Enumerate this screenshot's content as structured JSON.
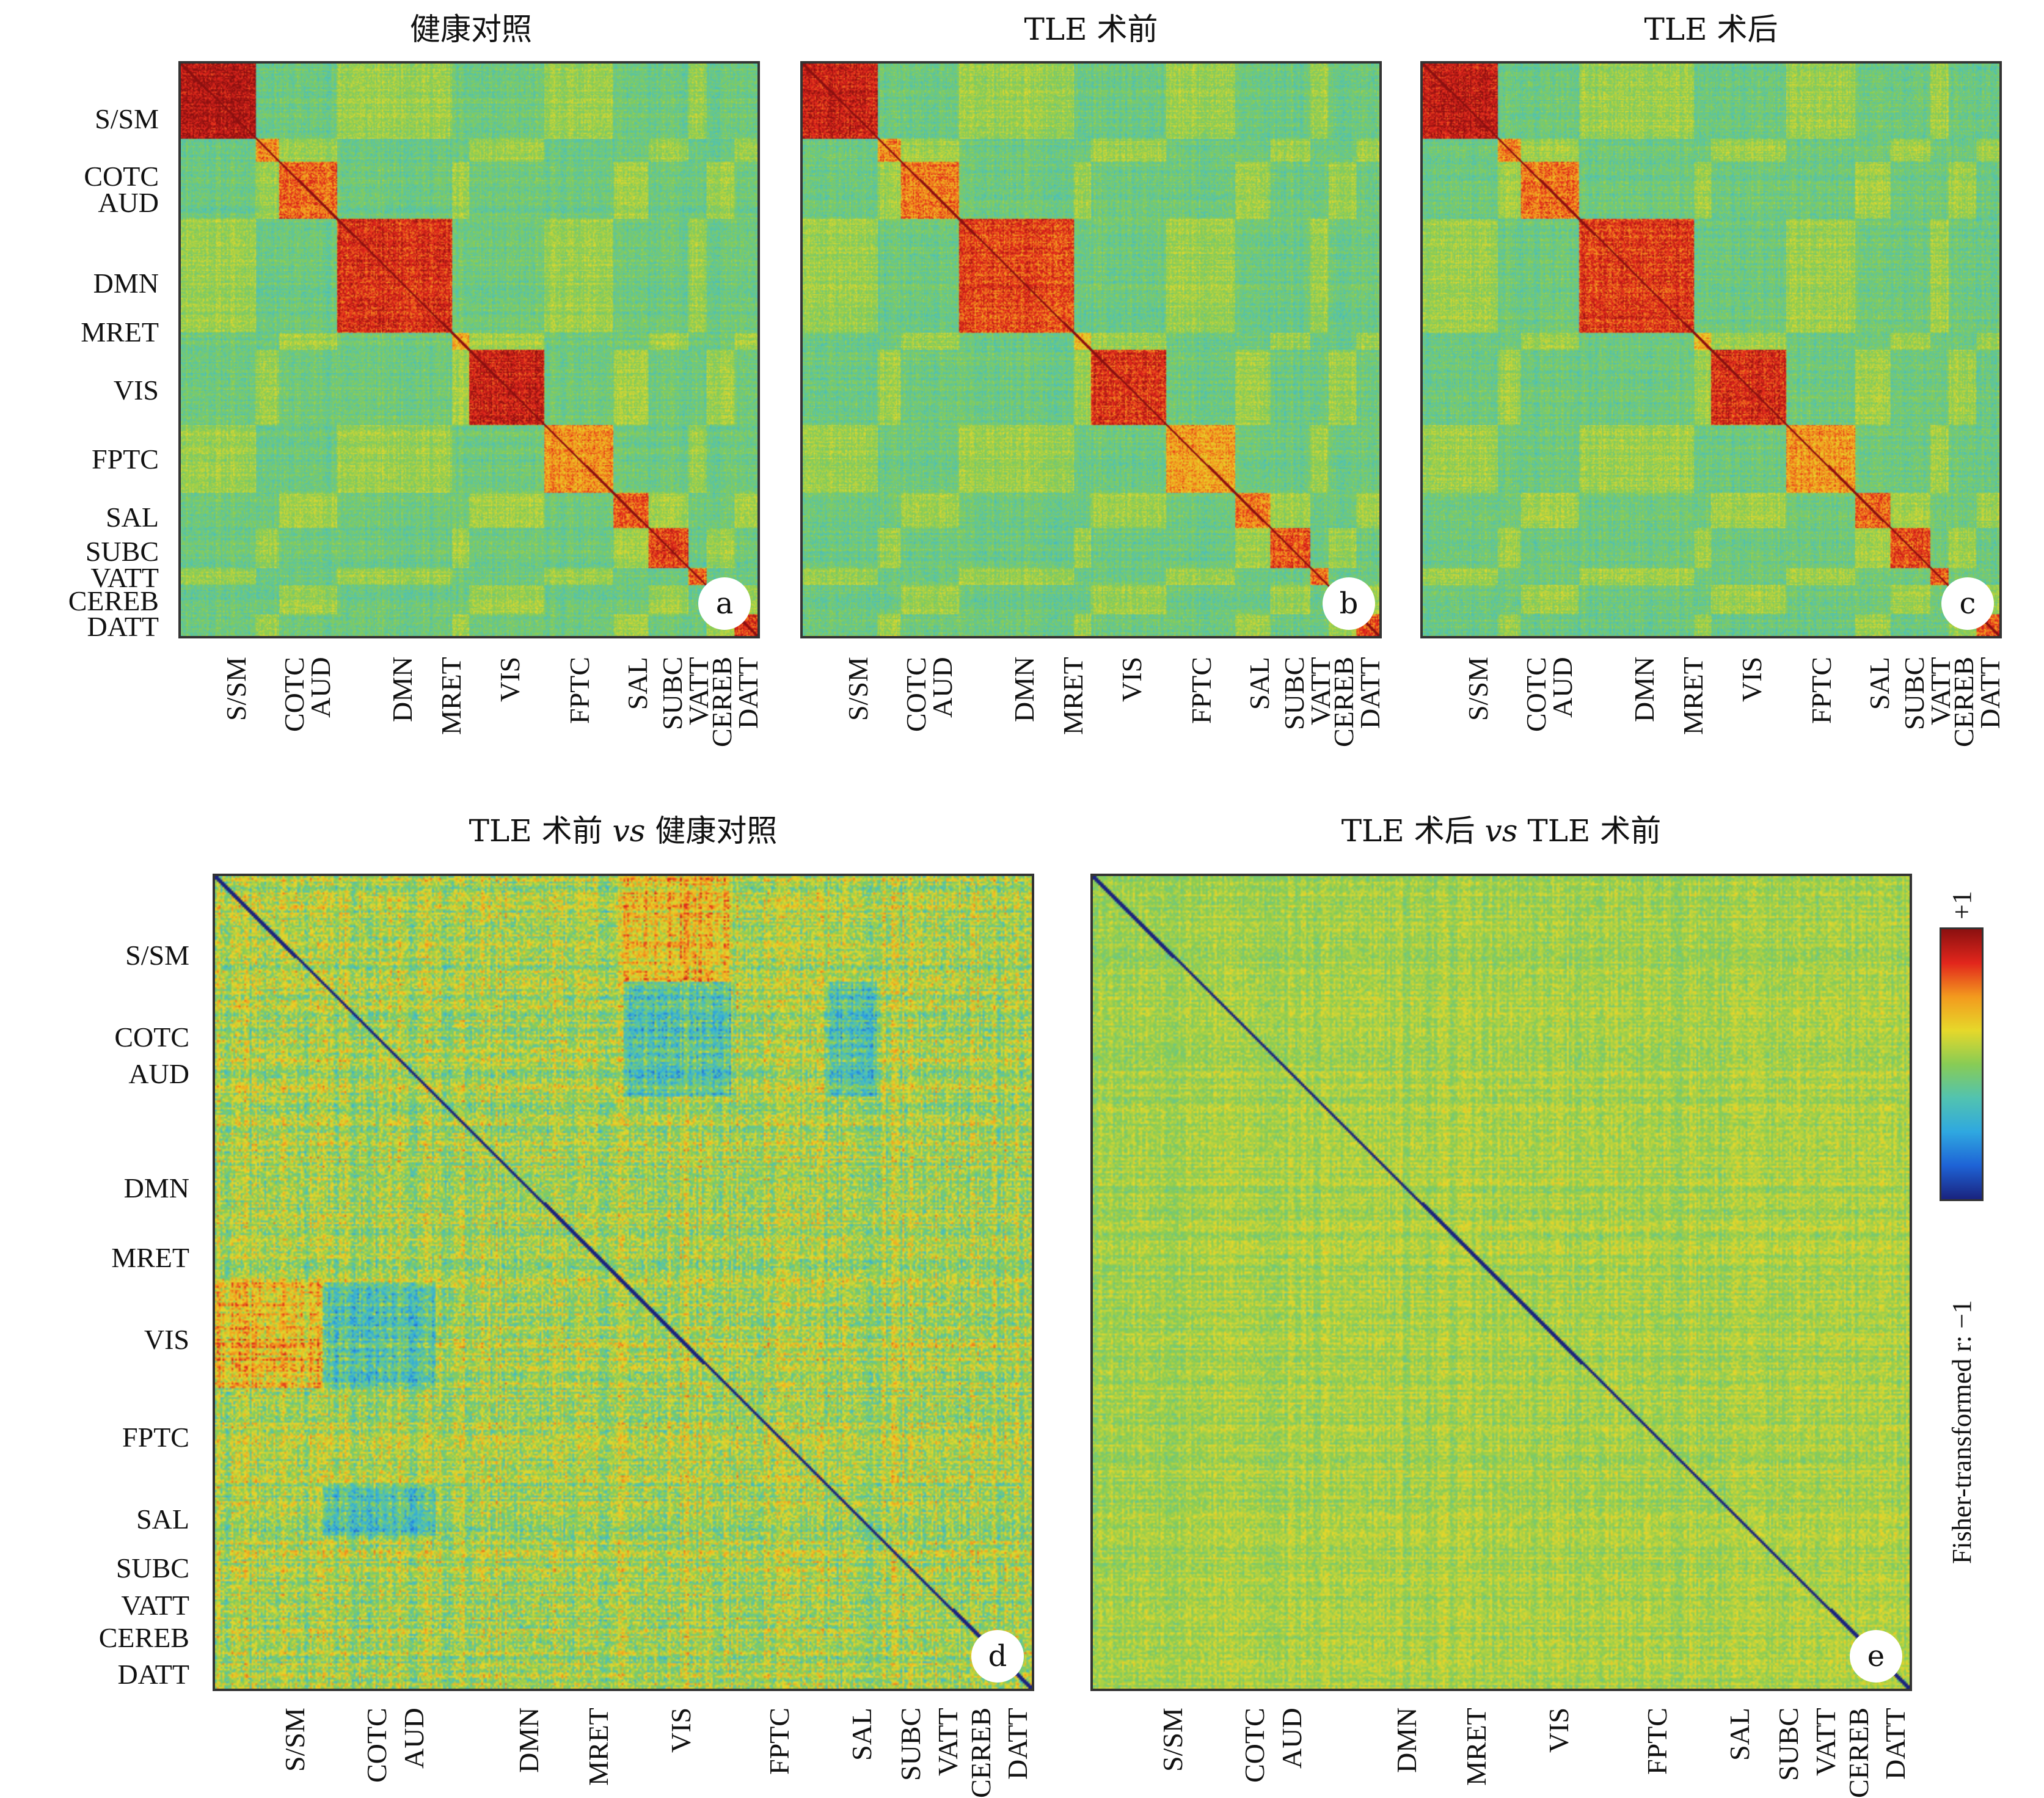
{
  "chart_data": [
    {
      "id": "a",
      "type": "heatmap",
      "title": "健康对照",
      "badge": "a",
      "ylabels": [
        "S/SM",
        "COTC",
        "AUD",
        "DMN",
        "MRET",
        "VIS",
        "FPTC",
        "SAL",
        "SUBC",
        "VATT",
        "CEREB",
        "DATT"
      ],
      "xlabels": [
        "S/SM",
        "COTC",
        "AUD",
        "DMN",
        "MRET",
        "VIS",
        "FPTC",
        "SAL",
        "SUBC",
        "VATT",
        "CEREB",
        "DATT"
      ],
      "blocks": [
        [
          0,
          0.13
        ],
        [
          0.13,
          0.17
        ],
        [
          0.17,
          0.27
        ],
        [
          0.27,
          0.47
        ],
        [
          0.47,
          0.5
        ],
        [
          0.5,
          0.63
        ],
        [
          0.63,
          0.75
        ],
        [
          0.75,
          0.81
        ],
        [
          0.81,
          0.88
        ],
        [
          0.88,
          0.91
        ],
        [
          0.91,
          0.96
        ],
        [
          0.96,
          1.0
        ]
      ],
      "diagonal": 1
    },
    {
      "id": "b",
      "type": "heatmap",
      "title": "TLE 术前",
      "badge": "b",
      "xlabels": [
        "S/SM",
        "COTC",
        "AUD",
        "DMN",
        "MRET",
        "VIS",
        "FPTC",
        "SAL",
        "SUBC",
        "VATT",
        "CEREB",
        "DATT"
      ],
      "diagonal": 1
    },
    {
      "id": "c",
      "type": "heatmap",
      "title": "TLE 术后",
      "badge": "c",
      "xlabels": [
        "S/SM",
        "COTC",
        "AUD",
        "DMN",
        "MRET",
        "VIS",
        "FPTC",
        "SAL",
        "SUBC",
        "VATT",
        "CEREB",
        "DATT"
      ],
      "diagonal": 1
    },
    {
      "id": "d",
      "type": "heatmap",
      "title": "TLE 术前 vs 健康对照",
      "title_parts": [
        "TLE 术前 ",
        "vs",
        " 健康对照"
      ],
      "badge": "d",
      "ylabels": [
        "S/SM",
        "COTC",
        "AUD",
        "DMN",
        "MRET",
        "VIS",
        "FPTC",
        "SAL",
        "SUBC",
        "VATT",
        "CEREB",
        "DATT"
      ],
      "xlabels": [
        "S/SM",
        "COTC",
        "AUD",
        "DMN",
        "MRET",
        "VIS",
        "FPTC",
        "SAL",
        "SUBC",
        "VATT",
        "CEREB",
        "DATT"
      ],
      "diagonal": -1
    },
    {
      "id": "e",
      "type": "heatmap",
      "title": "TLE 术后 vs TLE 术前",
      "title_parts": [
        "TLE 术后 ",
        "vs",
        " TLE 术前"
      ],
      "badge": "e",
      "xlabels": [
        "S/SM",
        "COTC",
        "AUD",
        "DMN",
        "MRET",
        "VIS",
        "FPTC",
        "SAL",
        "SUBC",
        "VATT",
        "CEREB",
        "DATT"
      ],
      "diagonal": -1
    }
  ],
  "colorbar": {
    "label": "Fisher-transformed r: −1",
    "max_label": "+1",
    "range": [
      -1,
      1
    ],
    "colors": [
      "#1a237e",
      "#1e63d6",
      "#2fa8e0",
      "#52c3b0",
      "#88cc55",
      "#e6d82a",
      "#f39a1e",
      "#e2261c",
      "#8b1010"
    ]
  }
}
